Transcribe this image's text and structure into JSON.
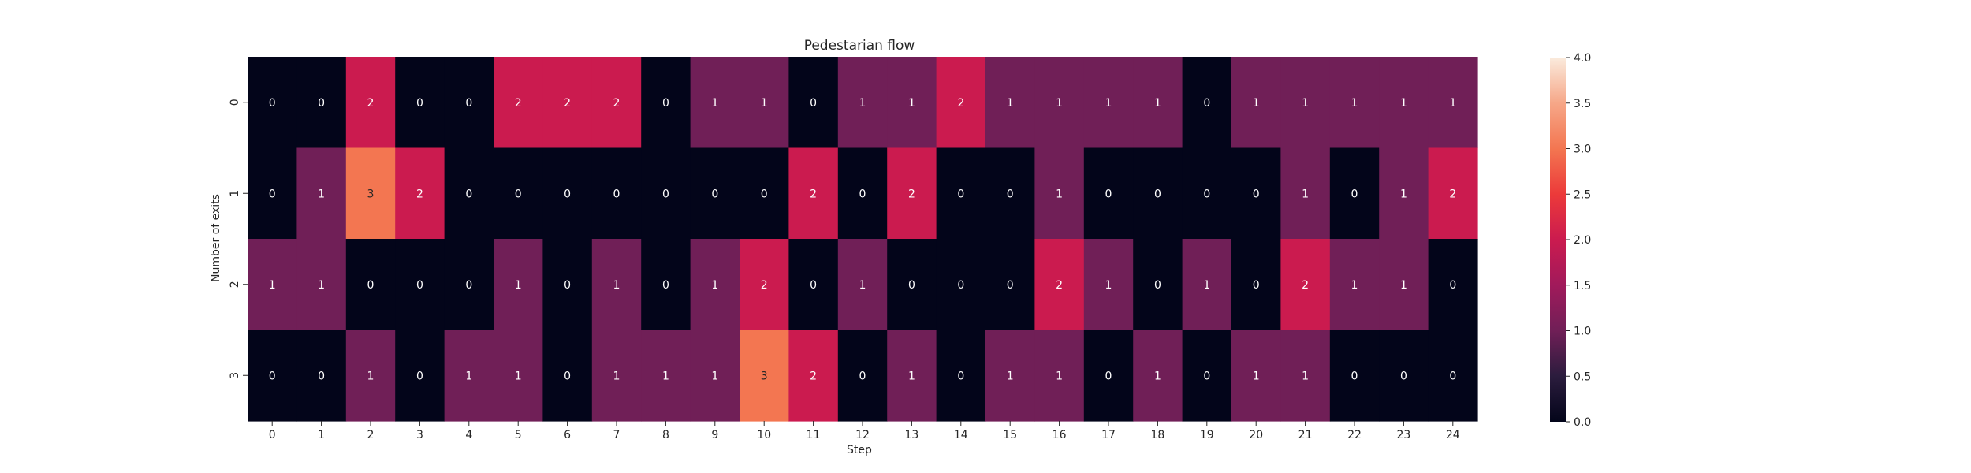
{
  "chart_data": {
    "type": "heatmap",
    "title": "Pedestarian flow",
    "xlabel": "Step",
    "ylabel": "Number of exits",
    "x_categories": [
      "0",
      "1",
      "2",
      "3",
      "4",
      "5",
      "6",
      "7",
      "8",
      "9",
      "10",
      "11",
      "12",
      "13",
      "14",
      "15",
      "16",
      "17",
      "18",
      "19",
      "20",
      "21",
      "22",
      "23",
      "24"
    ],
    "y_categories": [
      "0",
      "1",
      "2",
      "3"
    ],
    "values": [
      [
        0,
        0,
        2,
        0,
        0,
        2,
        2,
        2,
        0,
        1,
        1,
        0,
        1,
        1,
        2,
        1,
        1,
        1,
        1,
        0,
        1,
        1,
        1,
        1,
        1
      ],
      [
        0,
        1,
        3,
        2,
        0,
        0,
        0,
        0,
        0,
        0,
        0,
        2,
        0,
        2,
        0,
        0,
        1,
        0,
        0,
        0,
        0,
        1,
        0,
        1,
        2
      ],
      [
        1,
        1,
        0,
        0,
        0,
        1,
        0,
        1,
        0,
        1,
        2,
        0,
        1,
        0,
        0,
        0,
        2,
        1,
        0,
        1,
        0,
        2,
        1,
        1,
        0
      ],
      [
        0,
        0,
        1,
        0,
        1,
        1,
        0,
        1,
        1,
        1,
        3,
        2,
        0,
        1,
        0,
        1,
        1,
        0,
        1,
        0,
        1,
        1,
        0,
        0,
        0
      ]
    ],
    "colorbar": {
      "range": [
        0,
        4.0
      ],
      "ticks": [
        "0.0",
        "0.5",
        "1.0",
        "1.5",
        "2.0",
        "2.5",
        "3.0",
        "3.5",
        "4.0"
      ],
      "colormap": "rocket"
    },
    "annotations": true,
    "grid": false
  }
}
